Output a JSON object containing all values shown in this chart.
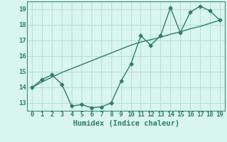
{
  "xlabel": "Humidex (Indice chaleur)",
  "ylabel": "",
  "x_data": [
    0,
    1,
    2,
    3,
    4,
    5,
    6,
    7,
    8,
    9,
    10,
    11,
    12,
    13,
    14,
    15,
    16,
    17,
    18,
    19
  ],
  "y_jagged": [
    14.0,
    14.5,
    14.8,
    14.2,
    12.8,
    12.9,
    12.7,
    12.75,
    13.0,
    14.4,
    15.5,
    17.3,
    16.7,
    17.3,
    19.1,
    17.5,
    18.8,
    19.2,
    18.9,
    18.3
  ],
  "y_trend": [
    14.0,
    14.35,
    14.65,
    14.95,
    15.2,
    15.45,
    15.7,
    15.95,
    16.2,
    16.45,
    16.7,
    16.9,
    17.05,
    17.2,
    17.4,
    17.55,
    17.75,
    17.9,
    18.1,
    18.3
  ],
  "line_color": "#2e7d6e",
  "bg_color": "#d8f5ee",
  "grid_color": "#b8ddd4",
  "xlim": [
    -0.5,
    19.5
  ],
  "ylim": [
    12.5,
    19.5
  ],
  "yticks": [
    13,
    14,
    15,
    16,
    17,
    18,
    19
  ],
  "xticks": [
    0,
    1,
    2,
    3,
    4,
    5,
    6,
    7,
    8,
    9,
    10,
    11,
    12,
    13,
    14,
    15,
    16,
    17,
    18,
    19
  ],
  "marker": "D",
  "marker_size": 2.5,
  "linewidth": 1.0,
  "tick_fontsize": 6.5,
  "xlabel_fontsize": 7.5
}
